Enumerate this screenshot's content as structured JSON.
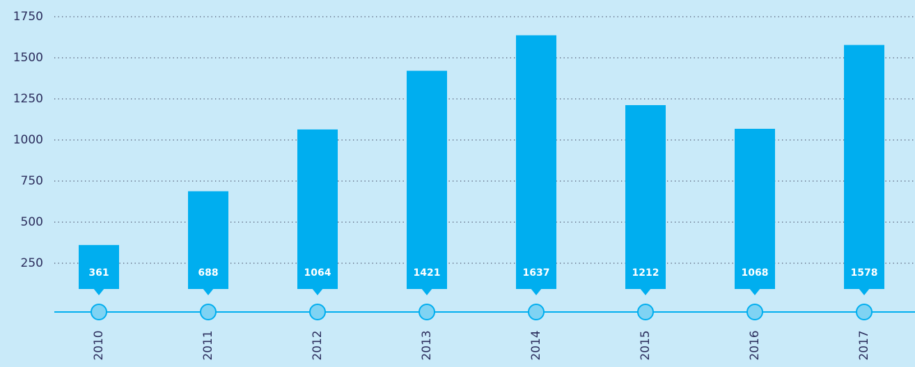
{
  "chart_data": {
    "type": "bar",
    "categories": [
      "2010",
      "2011",
      "2012",
      "2013",
      "2014",
      "2015",
      "2016",
      "2017"
    ],
    "values": [
      361,
      688,
      1064,
      1421,
      1637,
      1212,
      1068,
      1578
    ],
    "color": "#00aeef",
    "ylim": [
      0,
      1750
    ],
    "yticks": [
      250,
      500,
      750,
      1000,
      1250,
      1500,
      1750
    ],
    "grid": true
  }
}
